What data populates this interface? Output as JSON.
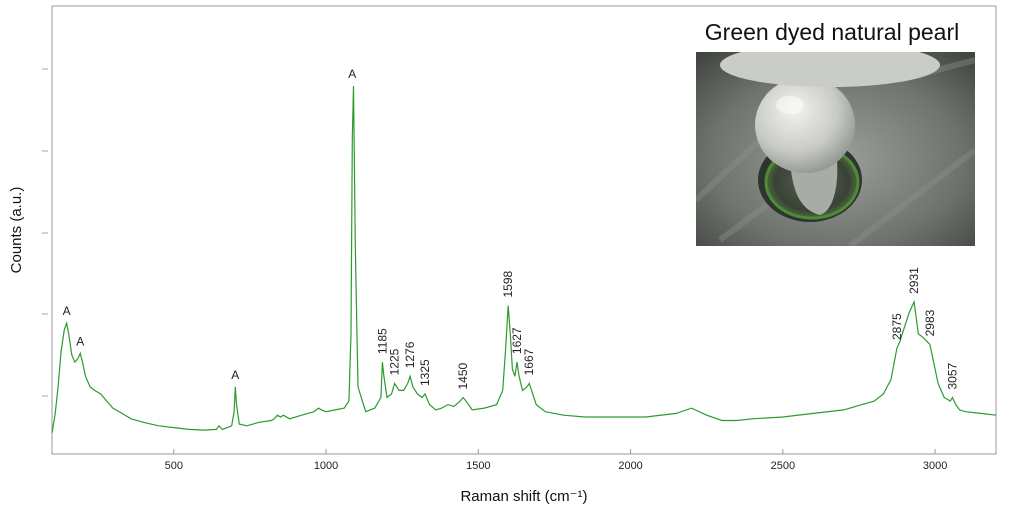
{
  "chart_data": {
    "type": "line",
    "title": "",
    "xlabel": "Raman shift (cm⁻¹)",
    "ylabel": "Counts (a.u.)",
    "xlim": [
      100,
      3200
    ],
    "ylim": [
      0,
      1
    ],
    "xticks": [
      500,
      1000,
      1500,
      2000,
      2500,
      3000
    ],
    "grid": false,
    "line_color": "#2e9a2e",
    "series": [
      {
        "x": [
          100,
          110,
          120,
          130,
          140,
          148,
          155,
          165,
          175,
          185,
          193,
          200,
          210,
          225,
          240,
          260,
          280,
          300,
          330,
          360,
          400,
          450,
          500,
          550,
          600,
          640,
          648,
          660,
          690,
          698,
          702,
          706,
          715,
          740,
          780,
          820,
          830,
          840,
          850,
          860,
          880,
          920,
          960,
          975,
          985,
          1000,
          1030,
          1060,
          1075,
          1082,
          1086,
          1090,
          1096,
          1105,
          1130,
          1160,
          1180,
          1185,
          1190,
          1200,
          1215,
          1225,
          1240,
          1255,
          1268,
          1276,
          1285,
          1300,
          1315,
          1325,
          1340,
          1360,
          1380,
          1400,
          1420,
          1440,
          1450,
          1460,
          1480,
          1520,
          1560,
          1580,
          1590,
          1598,
          1605,
          1612,
          1620,
          1627,
          1634,
          1645,
          1660,
          1667,
          1675,
          1690,
          1720,
          1780,
          1850,
          1950,
          2050,
          2150,
          2200,
          2250,
          2300,
          2350,
          2400,
          2500,
          2600,
          2700,
          2760,
          2800,
          2830,
          2855,
          2868,
          2875,
          2885,
          2900,
          2915,
          2931,
          2945,
          2960,
          2983,
          2995,
          3010,
          3030,
          3050,
          3057,
          3068,
          3080,
          3100,
          3150,
          3200
        ],
        "y": [
          0.02,
          0.07,
          0.15,
          0.25,
          0.31,
          0.33,
          0.3,
          0.24,
          0.22,
          0.23,
          0.245,
          0.22,
          0.18,
          0.15,
          0.14,
          0.13,
          0.11,
          0.09,
          0.075,
          0.06,
          0.05,
          0.04,
          0.035,
          0.03,
          0.028,
          0.03,
          0.04,
          0.03,
          0.04,
          0.08,
          0.15,
          0.1,
          0.045,
          0.04,
          0.05,
          0.055,
          0.06,
          0.07,
          0.065,
          0.07,
          0.06,
          0.07,
          0.08,
          0.09,
          0.085,
          0.08,
          0.085,
          0.09,
          0.11,
          0.3,
          0.85,
          1.0,
          0.55,
          0.15,
          0.08,
          0.09,
          0.12,
          0.22,
          0.18,
          0.12,
          0.13,
          0.16,
          0.14,
          0.14,
          0.16,
          0.18,
          0.15,
          0.13,
          0.12,
          0.13,
          0.1,
          0.085,
          0.09,
          0.1,
          0.095,
          0.11,
          0.12,
          0.11,
          0.085,
          0.09,
          0.1,
          0.14,
          0.26,
          0.38,
          0.3,
          0.2,
          0.18,
          0.22,
          0.18,
          0.14,
          0.15,
          0.16,
          0.14,
          0.1,
          0.08,
          0.07,
          0.065,
          0.065,
          0.065,
          0.075,
          0.09,
          0.07,
          0.055,
          0.055,
          0.06,
          0.065,
          0.075,
          0.085,
          0.1,
          0.11,
          0.13,
          0.17,
          0.23,
          0.26,
          0.28,
          0.32,
          0.36,
          0.39,
          0.3,
          0.29,
          0.27,
          0.22,
          0.16,
          0.12,
          0.11,
          0.12,
          0.1,
          0.085,
          0.08,
          0.075,
          0.07
        ]
      }
    ],
    "annotations": [
      {
        "x": 148,
        "y": 0.33,
        "text": "A",
        "rotate": false
      },
      {
        "x": 193,
        "y": 0.245,
        "text": "A",
        "rotate": false
      },
      {
        "x": 702,
        "y": 0.15,
        "text": "A",
        "rotate": false
      },
      {
        "x": 1086,
        "y": 1.0,
        "text": "A",
        "rotate": false
      },
      {
        "x": 1185,
        "y": 0.22,
        "text": "1185",
        "rotate": true
      },
      {
        "x": 1225,
        "y": 0.16,
        "text": "1225",
        "rotate": true
      },
      {
        "x": 1276,
        "y": 0.18,
        "text": "1276",
        "rotate": true
      },
      {
        "x": 1325,
        "y": 0.13,
        "text": "1325",
        "rotate": true
      },
      {
        "x": 1450,
        "y": 0.12,
        "text": "1450",
        "rotate": true
      },
      {
        "x": 1598,
        "y": 0.38,
        "text": "1598",
        "rotate": true
      },
      {
        "x": 1627,
        "y": 0.22,
        "text": "1627",
        "rotate": true
      },
      {
        "x": 1667,
        "y": 0.16,
        "text": "1667",
        "rotate": true
      },
      {
        "x": 2875,
        "y": 0.26,
        "text": "2875",
        "rotate": true
      },
      {
        "x": 2931,
        "y": 0.39,
        "text": "2931",
        "rotate": true
      },
      {
        "x": 2983,
        "y": 0.27,
        "text": "2983",
        "rotate": true
      },
      {
        "x": 3057,
        "y": 0.12,
        "text": "3057",
        "rotate": true
      }
    ]
  },
  "inset": {
    "title": "Green dyed natural pearl",
    "photo": "pearl-photo"
  }
}
